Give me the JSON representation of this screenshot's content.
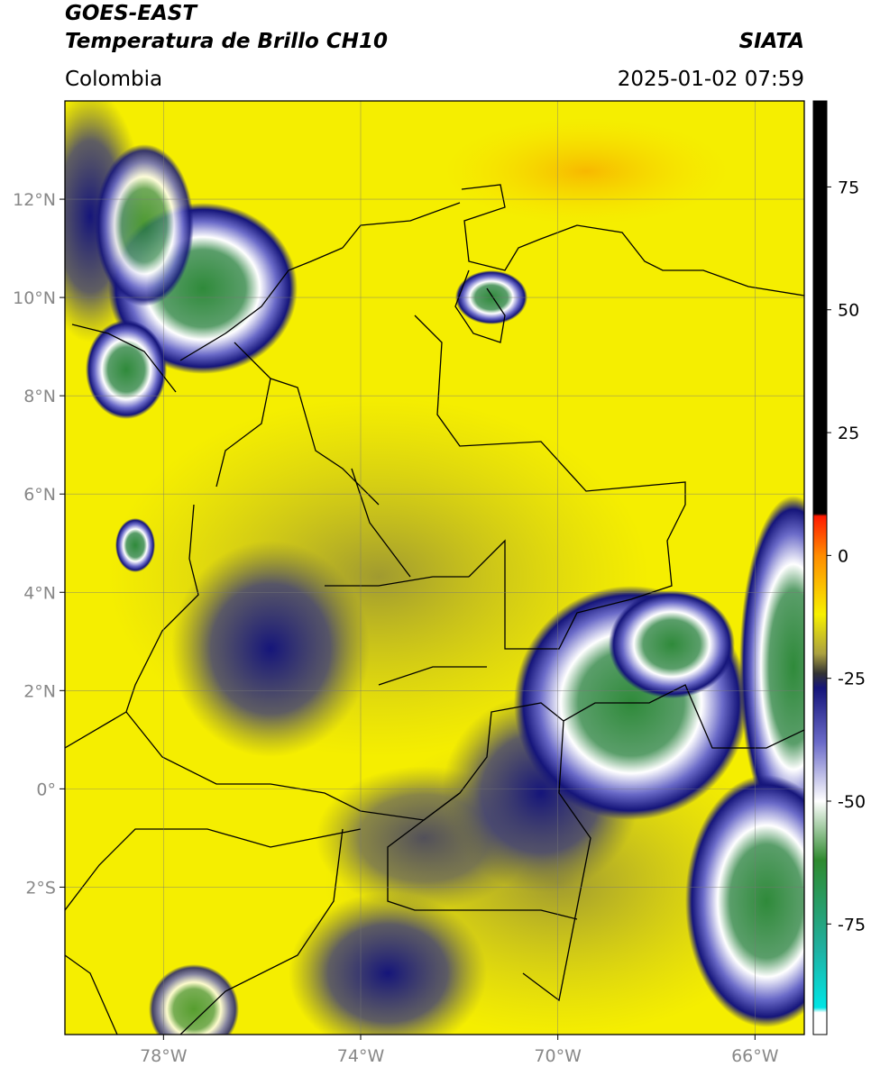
{
  "header": {
    "title": "GOES-EAST",
    "subtitle": "Temperatura de Brillo CH10",
    "source": "SIATA",
    "region": "Colombia",
    "datetime": "2025-01-02 07:59"
  },
  "map": {
    "xlim": [
      -80,
      -65
    ],
    "ylim": [
      -5,
      14
    ],
    "xticks": [
      {
        "value": -78,
        "label": "78°W"
      },
      {
        "value": -74,
        "label": "74°W"
      },
      {
        "value": -70,
        "label": "70°W"
      },
      {
        "value": -66,
        "label": "66°W"
      }
    ],
    "yticks": [
      {
        "value": 12,
        "label": "12°N"
      },
      {
        "value": 10,
        "label": "10°N"
      },
      {
        "value": 8,
        "label": "8°N"
      },
      {
        "value": 6,
        "label": "6°N"
      },
      {
        "value": 4,
        "label": "4°N"
      },
      {
        "value": 2,
        "label": "2°N"
      },
      {
        "value": 0,
        "label": "0°"
      },
      {
        "value": -2,
        "label": "2°S"
      }
    ],
    "grid": true
  },
  "colorbar": {
    "lim": [
      -97.5,
      92.5
    ],
    "ticks": [
      75,
      50,
      25,
      0,
      -25,
      -50,
      -75
    ],
    "stops": [
      {
        "value": 92.5,
        "color": "#000000"
      },
      {
        "value": 8.5,
        "color": "#000000"
      },
      {
        "value": 8,
        "color": "#ff1a00"
      },
      {
        "value": 0,
        "color": "#ff8c00"
      },
      {
        "value": -12,
        "color": "#f7f000"
      },
      {
        "value": -20,
        "color": "#aaa040"
      },
      {
        "value": -24,
        "color": "#333333"
      },
      {
        "value": -27,
        "color": "#15157a"
      },
      {
        "value": -38,
        "color": "#6a6ac8"
      },
      {
        "value": -50,
        "color": "#ffffff"
      },
      {
        "value": -62,
        "color": "#2f8a2f"
      },
      {
        "value": -80,
        "color": "#20b0a0"
      },
      {
        "value": -92,
        "color": "#00e5e5"
      },
      {
        "value": -93,
        "color": "#ffffff"
      },
      {
        "value": -97.5,
        "color": "#ffffff"
      }
    ]
  }
}
